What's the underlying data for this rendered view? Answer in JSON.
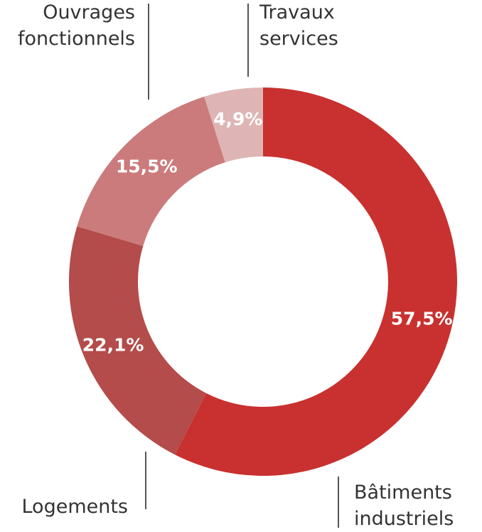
{
  "chart_data": {
    "type": "donut",
    "categories": [
      "Bâtiments industriels",
      "Logements",
      "Ouvrages fonctionnels",
      "Travaux services"
    ],
    "values": [
      57.5,
      22.1,
      15.5,
      4.9
    ],
    "value_labels": [
      "57,5%",
      "22,1%",
      "15,5%",
      "4,9%"
    ],
    "colors": [
      "#c8312f",
      "#b34c4a",
      "#cb7b7b",
      "#deb5b4"
    ]
  }
}
